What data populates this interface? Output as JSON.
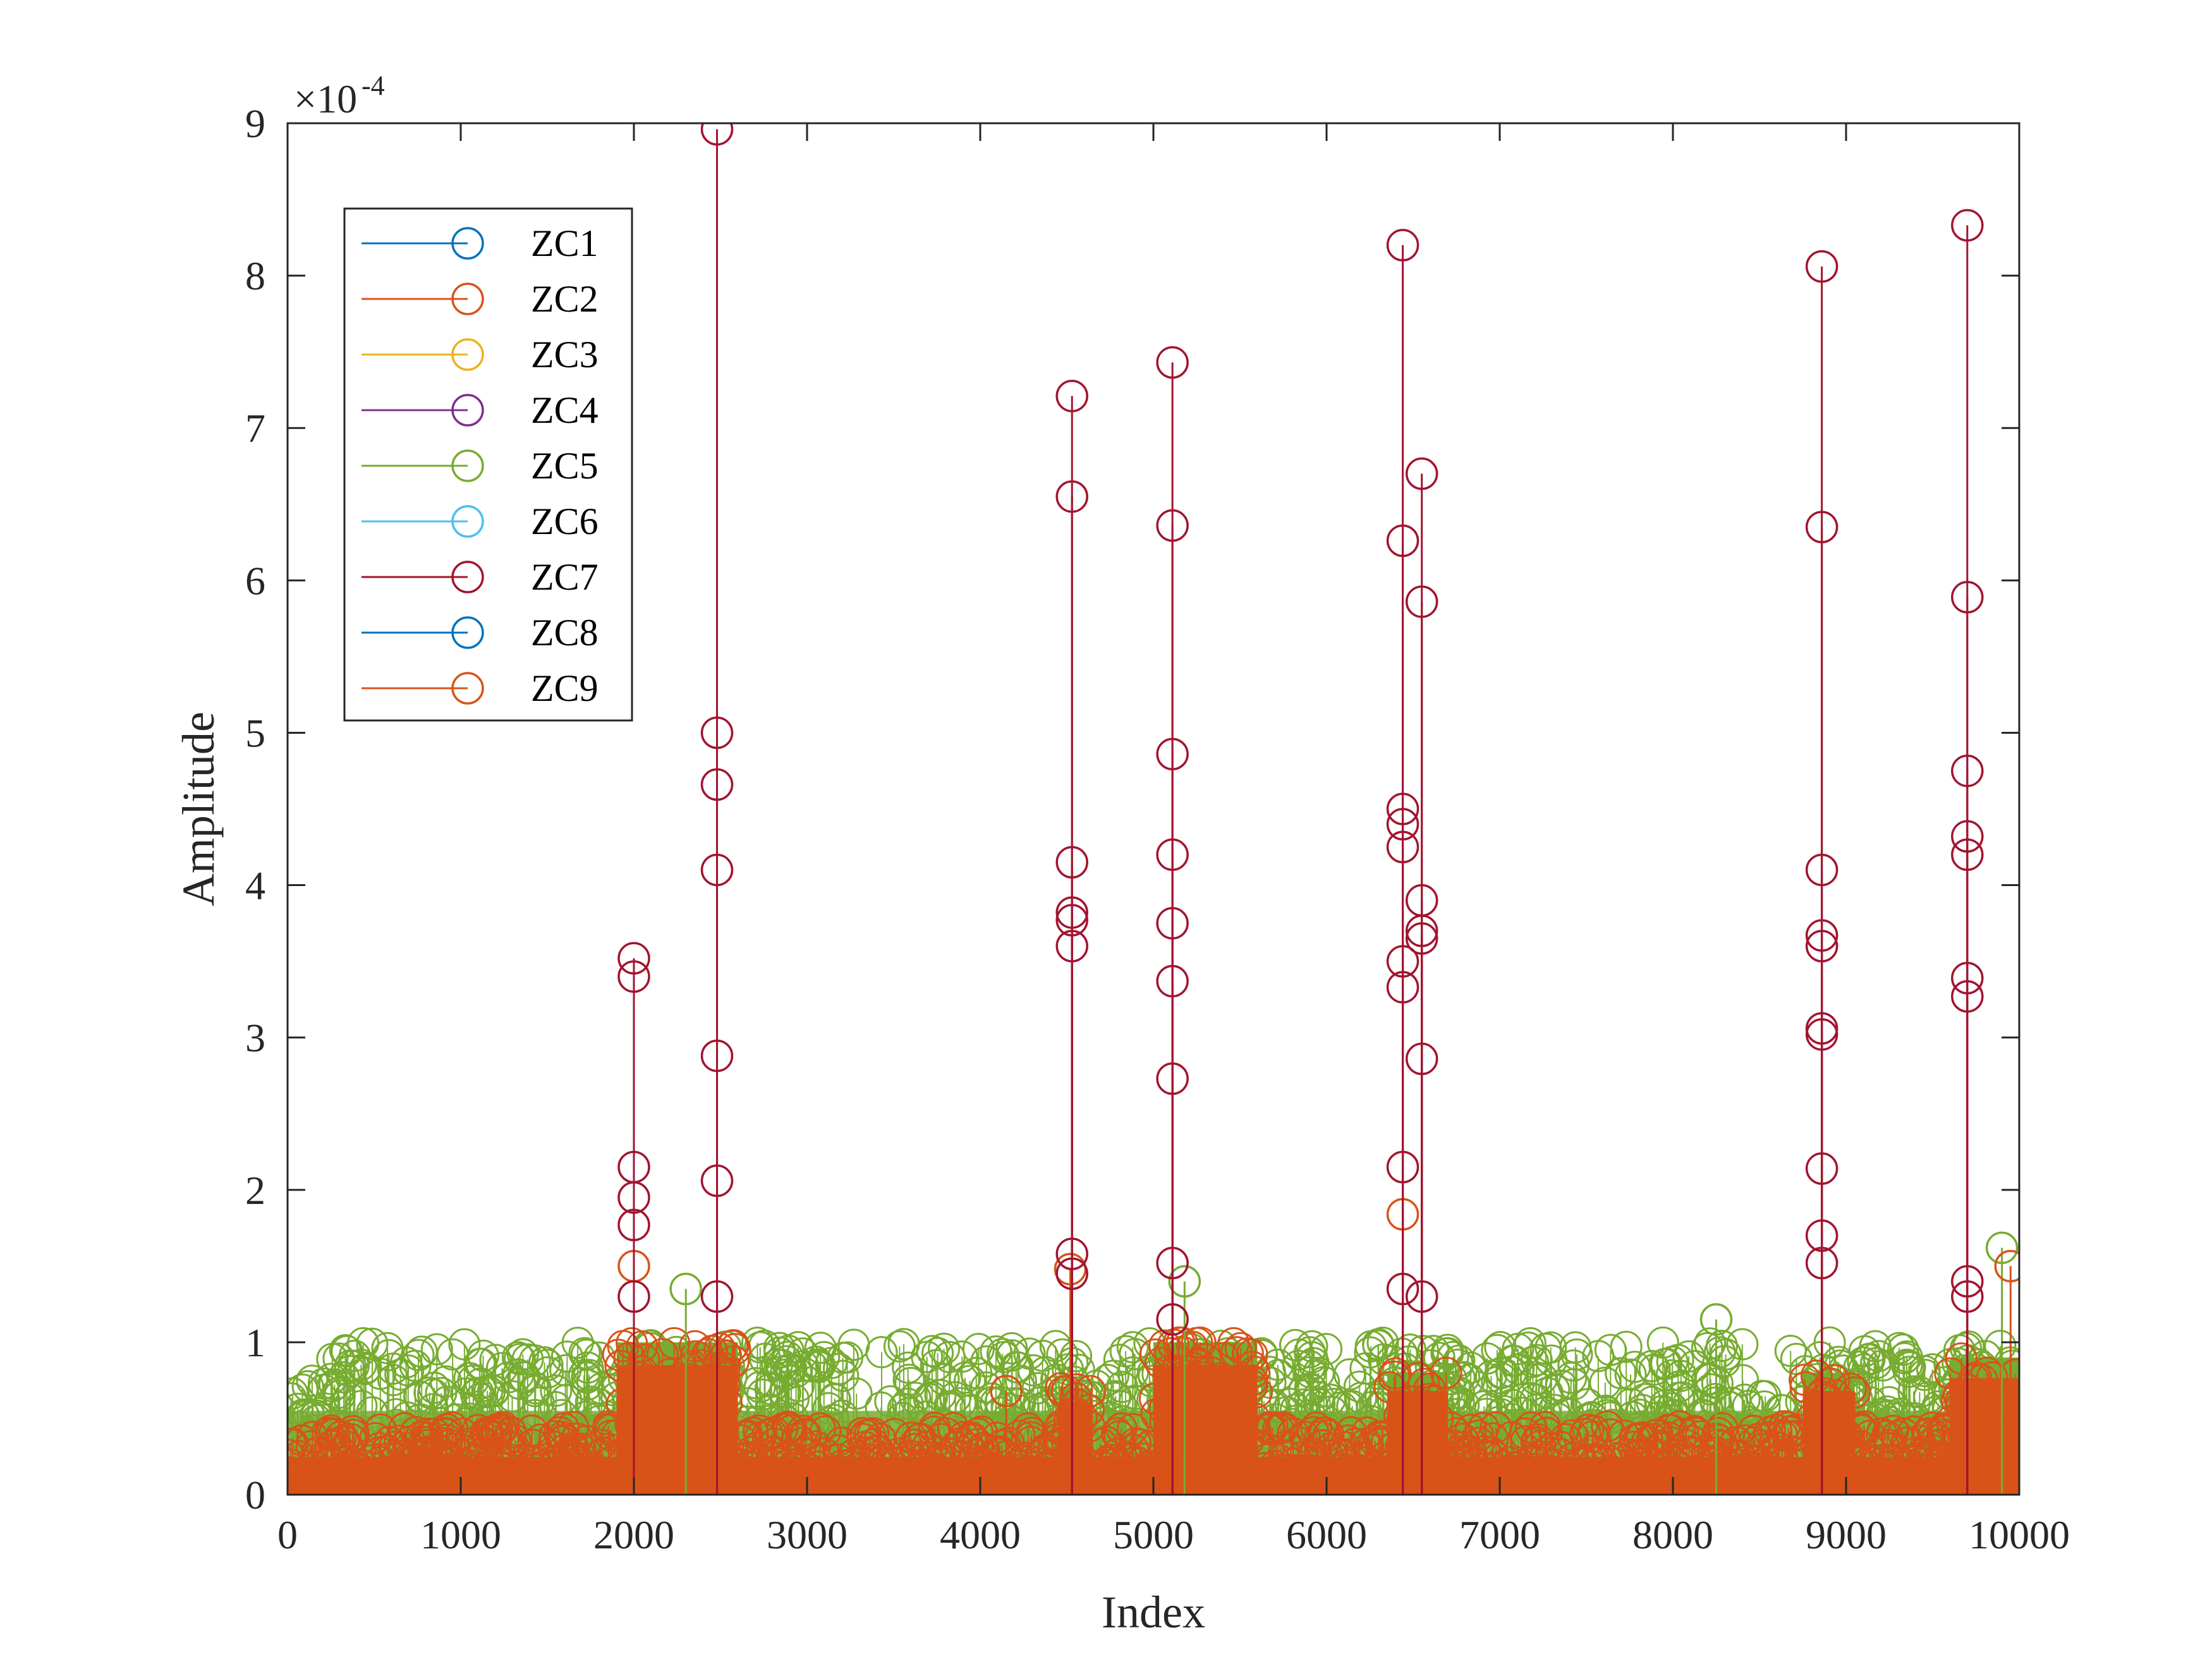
{
  "chart_data": {
    "type": "stem",
    "title": "",
    "xlabel": "Index",
    "ylabel": "Amplitude",
    "y_exponent_label": "×10",
    "y_exponent_power": "-4",
    "xlim": [
      0,
      10000
    ],
    "ylim": [
      0,
      9
    ],
    "y_scale_factor": 0.0001,
    "x_ticks": [
      0,
      1000,
      2000,
      3000,
      4000,
      5000,
      6000,
      7000,
      8000,
      9000,
      10000
    ],
    "x_tick_labels": [
      "0",
      "1000",
      "2000",
      "3000",
      "4000",
      "5000",
      "6000",
      "7000",
      "8000",
      "9000",
      "10000"
    ],
    "y_ticks": [
      0,
      1,
      2,
      3,
      4,
      5,
      6,
      7,
      8,
      9
    ],
    "y_tick_labels": [
      "0",
      "1",
      "2",
      "3",
      "4",
      "5",
      "6",
      "7",
      "8",
      "9"
    ],
    "grid": false,
    "legend_position": "top-left",
    "marker": "circle",
    "series": [
      {
        "name": "ZC1",
        "color": "#0072BD"
      },
      {
        "name": "ZC2",
        "color": "#D95319"
      },
      {
        "name": "ZC3",
        "color": "#EDB120"
      },
      {
        "name": "ZC4",
        "color": "#7E2F8E"
      },
      {
        "name": "ZC5",
        "color": "#77AC30"
      },
      {
        "name": "ZC6",
        "color": "#4DBEEE"
      },
      {
        "name": "ZC7",
        "color": "#A2142F"
      },
      {
        "name": "ZC8",
        "color": "#0072BD"
      },
      {
        "name": "ZC9",
        "color": "#D95319"
      }
    ],
    "background_bands": [
      {
        "series": "ZC5",
        "x_range": [
          0,
          10000
        ],
        "amplitude_range": [
          0.3,
          1.0
        ]
      },
      {
        "series": "ZC9",
        "x_range": [
          0,
          10000
        ],
        "amplitude_range": [
          0.1,
          0.45
        ]
      }
    ],
    "active_segments": [
      {
        "x_range": [
          1900,
          2600
        ],
        "amplitude_max": 1.0
      },
      {
        "x_range": [
          4450,
          4650
        ],
        "amplitude_max": 0.7
      },
      {
        "x_range": [
          5000,
          5600
        ],
        "amplitude_max": 1.0
      },
      {
        "x_range": [
          6350,
          6700
        ],
        "amplitude_max": 0.8
      },
      {
        "x_range": [
          8750,
          9050
        ],
        "amplitude_max": 0.8
      },
      {
        "x_range": [
          9600,
          10000
        ],
        "amplitude_max": 0.9
      }
    ],
    "peaks": {
      "ZC7": [
        {
          "x": 2000,
          "y": 3.52
        },
        {
          "x": 2000,
          "y": 3.4
        },
        {
          "x": 2000,
          "y": 2.15
        },
        {
          "x": 2000,
          "y": 1.95
        },
        {
          "x": 2000,
          "y": 1.77
        },
        {
          "x": 2000,
          "y": 1.3
        },
        {
          "x": 2480,
          "y": 8.96
        },
        {
          "x": 2480,
          "y": 5.0
        },
        {
          "x": 2480,
          "y": 4.66
        },
        {
          "x": 2480,
          "y": 4.1
        },
        {
          "x": 2480,
          "y": 2.88
        },
        {
          "x": 2480,
          "y": 2.06
        },
        {
          "x": 2480,
          "y": 1.3
        },
        {
          "x": 4530,
          "y": 7.21
        },
        {
          "x": 4530,
          "y": 6.55
        },
        {
          "x": 4530,
          "y": 4.15
        },
        {
          "x": 4530,
          "y": 3.82
        },
        {
          "x": 4530,
          "y": 3.77
        },
        {
          "x": 4530,
          "y": 3.6
        },
        {
          "x": 4530,
          "y": 1.58
        },
        {
          "x": 4530,
          "y": 1.45
        },
        {
          "x": 5110,
          "y": 7.43
        },
        {
          "x": 5110,
          "y": 6.36
        },
        {
          "x": 5110,
          "y": 4.86
        },
        {
          "x": 5110,
          "y": 4.2
        },
        {
          "x": 5110,
          "y": 3.75
        },
        {
          "x": 5110,
          "y": 3.37
        },
        {
          "x": 5110,
          "y": 2.73
        },
        {
          "x": 5110,
          "y": 1.52
        },
        {
          "x": 5110,
          "y": 1.15
        },
        {
          "x": 6440,
          "y": 8.2
        },
        {
          "x": 6440,
          "y": 6.26
        },
        {
          "x": 6440,
          "y": 4.5
        },
        {
          "x": 6440,
          "y": 4.4
        },
        {
          "x": 6440,
          "y": 4.25
        },
        {
          "x": 6440,
          "y": 3.5
        },
        {
          "x": 6440,
          "y": 3.33
        },
        {
          "x": 6440,
          "y": 2.15
        },
        {
          "x": 6440,
          "y": 1.35
        },
        {
          "x": 6550,
          "y": 6.7
        },
        {
          "x": 6550,
          "y": 5.86
        },
        {
          "x": 6550,
          "y": 3.9
        },
        {
          "x": 6550,
          "y": 3.7
        },
        {
          "x": 6550,
          "y": 3.65
        },
        {
          "x": 6550,
          "y": 2.86
        },
        {
          "x": 6550,
          "y": 1.3
        },
        {
          "x": 8860,
          "y": 8.06
        },
        {
          "x": 8860,
          "y": 6.35
        },
        {
          "x": 8860,
          "y": 4.1
        },
        {
          "x": 8860,
          "y": 3.67
        },
        {
          "x": 8860,
          "y": 3.6
        },
        {
          "x": 8860,
          "y": 3.06
        },
        {
          "x": 8860,
          "y": 3.02
        },
        {
          "x": 8860,
          "y": 2.14
        },
        {
          "x": 8860,
          "y": 1.7
        },
        {
          "x": 8860,
          "y": 1.52
        },
        {
          "x": 9700,
          "y": 8.33
        },
        {
          "x": 9700,
          "y": 5.89
        },
        {
          "x": 9700,
          "y": 4.75
        },
        {
          "x": 9700,
          "y": 4.32
        },
        {
          "x": 9700,
          "y": 4.2
        },
        {
          "x": 9700,
          "y": 3.39
        },
        {
          "x": 9700,
          "y": 3.27
        },
        {
          "x": 9700,
          "y": 1.4
        },
        {
          "x": 9700,
          "y": 1.3
        }
      ],
      "ZC2": [
        {
          "x": 2000,
          "y": 1.5
        },
        {
          "x": 4520,
          "y": 1.48
        },
        {
          "x": 6440,
          "y": 1.84
        },
        {
          "x": 4150,
          "y": 0.68
        },
        {
          "x": 9950,
          "y": 1.5
        }
      ],
      "ZC5": [
        {
          "x": 8250,
          "y": 1.15
        },
        {
          "x": 9900,
          "y": 1.62
        },
        {
          "x": 5180,
          "y": 1.4
        },
        {
          "x": 2300,
          "y": 1.35
        }
      ]
    }
  }
}
